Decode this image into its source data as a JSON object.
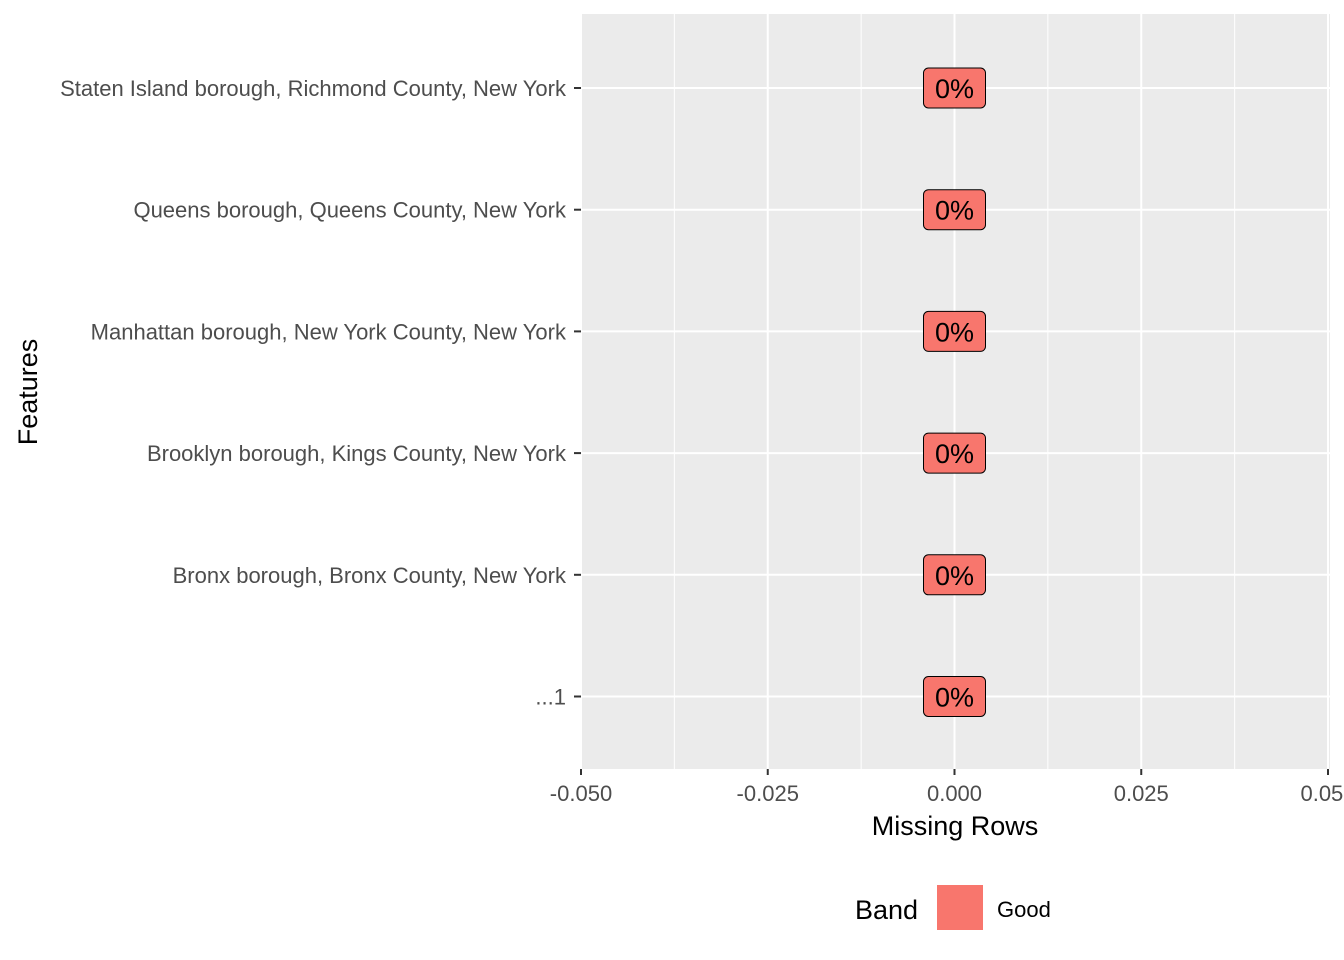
{
  "chart_data": {
    "type": "lollipop",
    "categories": [
      "...1",
      "Bronx borough, Bronx County, New York",
      "Brooklyn borough, Kings County, New York",
      "Manhattan borough, New York County, New York",
      "Queens borough, Queens County, New York",
      "Staten Island borough, Richmond County, New York"
    ],
    "values": [
      0,
      0,
      0,
      0,
      0,
      0
    ],
    "data_labels": [
      "0%",
      "0%",
      "0%",
      "0%",
      "0%",
      "0%"
    ],
    "bands": [
      "Good",
      "Good",
      "Good",
      "Good",
      "Good",
      "Good"
    ],
    "xlabel": "Missing Rows",
    "ylabel": "Features",
    "xlim": [
      -0.05,
      0.05
    ],
    "x_ticks": [
      -0.05,
      -0.025,
      0,
      0.025,
      0.05
    ],
    "x_tick_labels": [
      "-0.050",
      "-0.025",
      "0.000",
      "0.025",
      "0.050"
    ],
    "grid": true,
    "legend": {
      "title": "Band",
      "position": "bottom",
      "entries": [
        {
          "label": "Good",
          "color": "#F8766D"
        }
      ]
    },
    "colors": {
      "panel": "#EBEBEB",
      "grid": "#FFFFFF",
      "label_fill": "#F8766D"
    }
  }
}
